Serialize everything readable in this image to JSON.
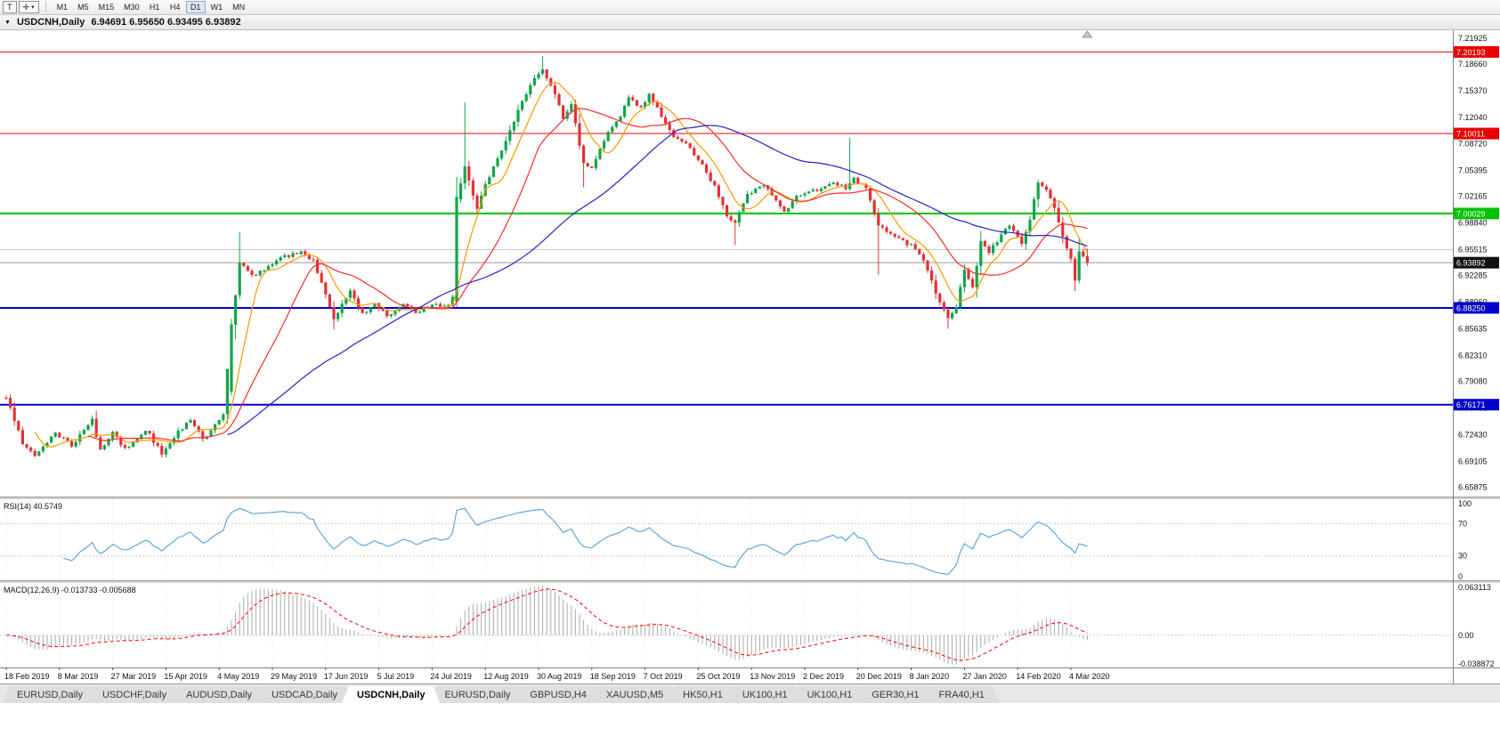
{
  "toolbar": {
    "t_label": "T",
    "crosshair_icon": "✛",
    "caret_icon": "▾",
    "timeframes": [
      "M1",
      "M5",
      "M15",
      "M30",
      "H1",
      "H4",
      "D1",
      "W1",
      "MN"
    ],
    "active_timeframe": "D1"
  },
  "chart_title": {
    "collapse_icon": "▼",
    "symbol": "USDCNH,Daily",
    "ohlc": "6.94691 6.95650 6.93495 6.93892"
  },
  "tabs": {
    "items": [
      "EURUSD,Daily",
      "USDCHF,Daily",
      "AUDUSD,Daily",
      "USDCAD,Daily",
      "USDCNH,Daily",
      "EURUSD,Daily",
      "GBPUSD,H4",
      "XAUUSD,M5",
      "HK50,H1",
      "UK100,H1",
      "UK100,H1",
      "GER30,H1",
      "FRA40,H1"
    ],
    "active_index": 4
  },
  "chart_data": {
    "type": "candlestick",
    "title": "USDCNH,Daily",
    "symbol": "USDCNH",
    "period": "Daily",
    "ohlc_display": {
      "open": 6.94691,
      "high": 6.9565,
      "low": 6.93495,
      "close": 6.93892
    },
    "bars_total": 265,
    "up_color": "#10a54a",
    "down_color": "#e43135",
    "y_axis": {
      "range": [
        6.647,
        7.229
      ],
      "tick_labels": [
        "7.21925",
        "7.18660",
        "7.15370",
        "7.12040",
        "7.08720",
        "7.05395",
        "7.02165",
        "6.98840",
        "6.95515",
        "6.92285",
        "6.88960",
        "6.85635",
        "6.82310",
        "6.79080",
        "6.75755",
        "6.72430",
        "6.69105",
        "6.65875"
      ]
    },
    "x_axis": {
      "bars_per_label": 13,
      "tick_labels": [
        "18 Feb 2019",
        "8 Mar 2019",
        "27 Mar 2019",
        "15 Apr 2019",
        "4 May 2019",
        "29 May 2019",
        "17 Jun 2019",
        "5 Jul 2019",
        "24 Jul 2019",
        "12 Aug 2019",
        "30 Aug 2019",
        "18 Sep 2019",
        "7 Oct 2019",
        "25 Oct 2019",
        "13 Nov 2019",
        "2 Dec 2019",
        "20 Dec 2019",
        "8 Jan 2020",
        "27 Jan 2020",
        "14 Feb 2020",
        "4 Mar 2020"
      ]
    },
    "hlines": [
      {
        "price": 7.20193,
        "color": "#e80000",
        "width": 1,
        "tag": "7.20193"
      },
      {
        "price": 7.10011,
        "color": "#e80000",
        "width": 1,
        "tag": "7.10011"
      },
      {
        "price": 7.00029,
        "color": "#00c300",
        "width": 2,
        "tag": "7.00029"
      },
      {
        "price": 6.8825,
        "color": "#0000cc",
        "width": 2,
        "tag": "6.88250"
      },
      {
        "price": 6.76171,
        "color": "#0000cc",
        "width": 2,
        "tag": "6.76171"
      },
      {
        "price": 6.9552,
        "color": "#c9c9c9",
        "width": 1,
        "tag": null
      }
    ],
    "bid_line": {
      "price": 6.93892,
      "color": "#9a9a9a",
      "tag": "6.93892",
      "tag_bg": "#111111"
    },
    "moving_averages": [
      {
        "name": "fast",
        "period": 8,
        "color": "#ff9900"
      },
      {
        "name": "medium",
        "period": 21,
        "color": "#ff2a2a"
      },
      {
        "name": "slow",
        "period": 55,
        "color": "#2424cc"
      }
    ],
    "close_waypoints": [
      [
        0,
        6.772
      ],
      [
        2,
        6.742
      ],
      [
        4,
        6.714
      ],
      [
        7,
        6.699
      ],
      [
        12,
        6.727
      ],
      [
        16,
        6.711
      ],
      [
        21,
        6.742
      ],
      [
        23,
        6.704
      ],
      [
        26,
        6.727
      ],
      [
        29,
        6.706
      ],
      [
        34,
        6.731
      ],
      [
        38,
        6.701
      ],
      [
        41,
        6.722
      ],
      [
        45,
        6.744
      ],
      [
        48,
        6.718
      ],
      [
        51,
        6.735
      ],
      [
        53,
        6.752
      ],
      [
        55,
        6.86
      ],
      [
        57,
        6.938
      ],
      [
        60,
        6.922
      ],
      [
        64,
        6.934
      ],
      [
        68,
        6.947
      ],
      [
        72,
        6.951
      ],
      [
        75,
        6.941
      ],
      [
        78,
        6.898
      ],
      [
        80,
        6.869
      ],
      [
        84,
        6.902
      ],
      [
        87,
        6.875
      ],
      [
        90,
        6.887
      ],
      [
        93,
        6.872
      ],
      [
        97,
        6.889
      ],
      [
        100,
        6.877
      ],
      [
        103,
        6.885
      ],
      [
        108,
        6.887
      ],
      [
        109,
        6.896
      ],
      [
        110,
        7.02
      ],
      [
        112,
        7.058
      ],
      [
        115,
        7.008
      ],
      [
        118,
        7.048
      ],
      [
        122,
        7.092
      ],
      [
        125,
        7.128
      ],
      [
        128,
        7.162
      ],
      [
        131,
        7.18
      ],
      [
        134,
        7.15
      ],
      [
        136,
        7.118
      ],
      [
        138,
        7.137
      ],
      [
        141,
        7.062
      ],
      [
        143,
        7.056
      ],
      [
        147,
        7.103
      ],
      [
        150,
        7.123
      ],
      [
        152,
        7.147
      ],
      [
        155,
        7.131
      ],
      [
        157,
        7.151
      ],
      [
        160,
        7.121
      ],
      [
        163,
        7.097
      ],
      [
        166,
        7.088
      ],
      [
        170,
        7.061
      ],
      [
        173,
        7.034
      ],
      [
        176,
        6.998
      ],
      [
        178,
        6.989
      ],
      [
        181,
        7.023
      ],
      [
        185,
        7.037
      ],
      [
        188,
        7.018
      ],
      [
        190,
        7.001
      ],
      [
        193,
        7.023
      ],
      [
        198,
        7.029
      ],
      [
        202,
        7.037
      ],
      [
        205,
        7.033
      ],
      [
        207,
        7.043
      ],
      [
        210,
        7.032
      ],
      [
        213,
        6.984
      ],
      [
        216,
        6.977
      ],
      [
        219,
        6.965
      ],
      [
        222,
        6.958
      ],
      [
        225,
        6.931
      ],
      [
        227,
        6.899
      ],
      [
        230,
        6.869
      ],
      [
        232,
        6.885
      ],
      [
        234,
        6.931
      ],
      [
        236,
        6.907
      ],
      [
        238,
        6.967
      ],
      [
        240,
        6.953
      ],
      [
        243,
        6.973
      ],
      [
        245,
        6.987
      ],
      [
        248,
        6.963
      ],
      [
        250,
        6.991
      ],
      [
        252,
        7.041
      ],
      [
        254,
        7.029
      ],
      [
        256,
        7.009
      ],
      [
        258,
        6.971
      ],
      [
        260,
        6.946
      ],
      [
        261,
        6.916
      ],
      [
        262,
        6.952
      ],
      [
        263,
        6.9469
      ],
      [
        264,
        6.93892
      ]
    ],
    "wick_overrides": {
      "55": {
        "o": 6.778,
        "h": 6.869,
        "l": 6.773,
        "c": 6.862
      },
      "57": {
        "h": 6.977
      },
      "80": {
        "l": 6.8555
      },
      "110": {
        "o": 6.89,
        "h": 7.046,
        "l": 6.884,
        "c": 7.021
      },
      "112": {
        "h": 7.139
      },
      "131": {
        "h": 7.1966
      },
      "141": {
        "l": 7.033
      },
      "178": {
        "l": 6.961
      },
      "206": {
        "h": 7.095
      },
      "213": {
        "l": 6.924
      },
      "230": {
        "l": 6.8565
      },
      "261": {
        "l": 6.9035
      }
    },
    "indicators": {
      "rsi": {
        "label": "RSI(14) 40.5749",
        "period": 14,
        "value": 40.5749,
        "range": [
          0,
          100
        ],
        "levels": [
          70,
          30
        ],
        "scale_labels": [
          "100",
          "70",
          "30",
          "0"
        ],
        "color": "#55a0dd"
      },
      "macd": {
        "label": "MACD(12,26,9) -0.013733 -0.005688",
        "fast": 12,
        "slow": 26,
        "signal": 9,
        "macd_value": -0.013733,
        "signal_value": -0.005688,
        "range": [
          -0.038872,
          0.063113
        ],
        "scale_labels": [
          "0.063113",
          "0.00",
          "-0.038872"
        ],
        "histogram_color": "#ababab",
        "signal_color": "#ff0000"
      }
    },
    "render_hints": {
      "seed": 97531,
      "noise": 0.0045
    }
  }
}
